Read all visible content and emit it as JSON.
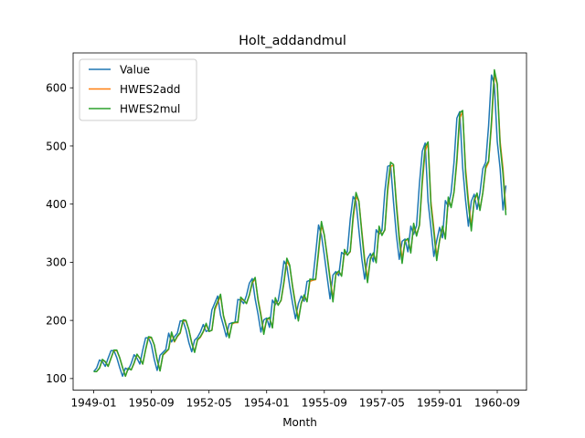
{
  "chart_data": {
    "type": "line",
    "title": "Holt_addandmul",
    "xlabel": "Month",
    "ylabel": "",
    "ylim": [
      80,
      660
    ],
    "yticks": [
      100,
      200,
      300,
      400,
      500,
      600
    ],
    "xticks": [
      "1949-01",
      "1950-09",
      "1952-05",
      "1954-01",
      "1955-09",
      "1957-05",
      "1959-01",
      "1960-09"
    ],
    "x_start": "1949-01",
    "x_end": "1960-12",
    "legend_position": "upper-left",
    "grid": false,
    "series": [
      {
        "name": "Value",
        "color": "#1f77b4",
        "values": [
          112,
          118,
          132,
          129,
          121,
          135,
          148,
          148,
          136,
          119,
          104,
          118,
          115,
          126,
          141,
          135,
          125,
          149,
          170,
          170,
          158,
          133,
          114,
          140,
          145,
          150,
          178,
          163,
          172,
          178,
          199,
          199,
          184,
          162,
          146,
          166,
          171,
          180,
          193,
          181,
          183,
          218,
          230,
          242,
          209,
          191,
          172,
          194,
          196,
          196,
          236,
          235,
          229,
          243,
          264,
          272,
          237,
          211,
          180,
          201,
          204,
          188,
          235,
          227,
          234,
          264,
          302,
          293,
          259,
          229,
          203,
          229,
          242,
          233,
          267,
          269,
          270,
          315,
          364,
          347,
          312,
          274,
          237,
          278,
          284,
          277,
          317,
          313,
          318,
          374,
          413,
          405,
          355,
          306,
          271,
          306,
          315,
          301,
          356,
          348,
          355,
          422,
          465,
          467,
          404,
          347,
          305,
          336,
          340,
          318,
          362,
          348,
          363,
          435,
          491,
          505,
          404,
          359,
          310,
          337,
          360,
          342,
          406,
          396,
          420,
          472,
          548,
          559,
          463,
          407,
          362,
          405,
          417,
          391,
          419,
          461,
          472,
          535,
          622,
          606,
          508,
          461,
          390,
          432
        ]
      },
      {
        "name": "HWES2add",
        "color": "#ff7f0e",
        "values": [
          112,
          112,
          118,
          132,
          129,
          121,
          135,
          148,
          148,
          136,
          119,
          104,
          118,
          115,
          126,
          141,
          135,
          125,
          149,
          170,
          170,
          158,
          133,
          114,
          140,
          145,
          150,
          178,
          163,
          172,
          178,
          199,
          199,
          184,
          162,
          146,
          166,
          171,
          180,
          193,
          181,
          183,
          218,
          230,
          242,
          209,
          191,
          172,
          194,
          196,
          196,
          236,
          235,
          229,
          243,
          264,
          272,
          237,
          211,
          180,
          201,
          204,
          188,
          235,
          227,
          234,
          264,
          302,
          293,
          259,
          229,
          203,
          229,
          242,
          233,
          267,
          269,
          270,
          315,
          364,
          347,
          312,
          274,
          237,
          278,
          284,
          277,
          317,
          313,
          318,
          374,
          413,
          405,
          355,
          306,
          271,
          306,
          315,
          301,
          356,
          348,
          355,
          422,
          465,
          467,
          404,
          347,
          305,
          336,
          340,
          318,
          362,
          348,
          363,
          435,
          491,
          505,
          404,
          359,
          310,
          337,
          360,
          342,
          406,
          396,
          420,
          472,
          548,
          559,
          463,
          407,
          362,
          405,
          417,
          391,
          419,
          461,
          472,
          535,
          622,
          606,
          508,
          461,
          390
        ]
      },
      {
        "name": "HWES2mul",
        "color": "#2ca02c",
        "values": [
          112,
          112,
          118,
          133,
          129,
          121,
          135,
          149,
          149,
          136,
          119,
          104,
          118,
          115,
          127,
          142,
          135,
          125,
          150,
          172,
          171,
          158,
          132,
          113,
          141,
          146,
          151,
          180,
          164,
          173,
          179,
          201,
          200,
          184,
          161,
          145,
          167,
          172,
          181,
          195,
          181,
          183,
          221,
          233,
          245,
          208,
          189,
          170,
          195,
          197,
          197,
          240,
          235,
          229,
          244,
          266,
          274,
          235,
          208,
          176,
          202,
          205,
          187,
          239,
          226,
          235,
          267,
          307,
          295,
          257,
          226,
          199,
          230,
          244,
          232,
          271,
          270,
          271,
          320,
          370,
          347,
          309,
          270,
          232,
          280,
          285,
          276,
          322,
          312,
          319,
          380,
          420,
          405,
          351,
          300,
          265,
          307,
          316,
          299,
          362,
          346,
          356,
          429,
          472,
          468,
          398,
          339,
          298,
          337,
          341,
          316,
          367,
          345,
          364,
          443,
          499,
          507,
          397,
          352,
          303,
          338,
          362,
          340,
          412,
          394,
          421,
          478,
          557,
          561,
          455,
          399,
          354,
          407,
          419,
          389,
          420,
          465,
          474,
          542,
          631,
          607,
          501,
          452,
          381
        ]
      }
    ]
  }
}
